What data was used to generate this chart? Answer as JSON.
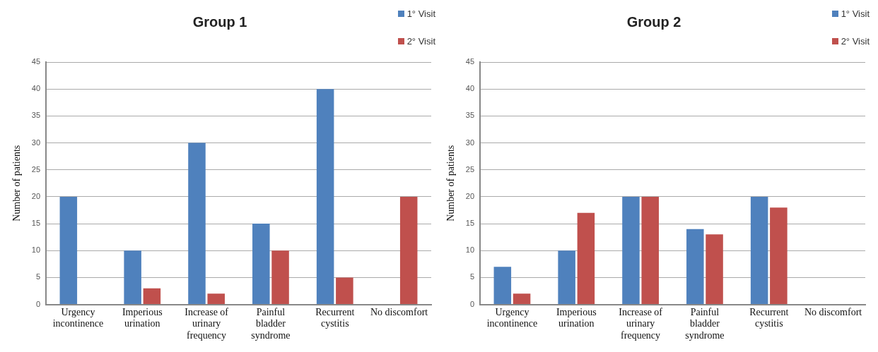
{
  "chart_data": [
    {
      "type": "bar",
      "title": "Group 1",
      "ylabel": "Number of patients",
      "categories": [
        "Urgency incontinence",
        "Imperious urination",
        "Increase of urinary frequency",
        "Painful bladder syndrome",
        "Recurrent cystitis",
        "No discomfort"
      ],
      "series": [
        {
          "name": "1° Visit",
          "color": "#4f81bd",
          "values": [
            20,
            10,
            30,
            15,
            40,
            0
          ]
        },
        {
          "name": "2° Visit",
          "color": "#c0504d",
          "values": [
            0,
            3,
            2,
            10,
            5,
            20
          ]
        }
      ],
      "ylim": [
        0,
        45
      ],
      "yticks": [
        0,
        5,
        10,
        15,
        20,
        25,
        30,
        35,
        40,
        45
      ],
      "grid": "y",
      "legend": "top right"
    },
    {
      "type": "bar",
      "title": "Group 2",
      "ylabel": "Number of patients",
      "categories": [
        "Urgency incontinence",
        "Imperious urination",
        "Increase of urinary frequency",
        "Painful bladder syndrome",
        "Recurrent cystitis",
        "No discomfort"
      ],
      "series": [
        {
          "name": "1° Visit",
          "color": "#4f81bd",
          "values": [
            7,
            10,
            20,
            14,
            20,
            0
          ]
        },
        {
          "name": "2° Visit",
          "color": "#c0504d",
          "values": [
            2,
            17,
            20,
            13,
            18,
            0
          ]
        }
      ],
      "ylim": [
        0,
        45
      ],
      "yticks": [
        0,
        5,
        10,
        15,
        20,
        25,
        30,
        35,
        40,
        45
      ],
      "grid": "y",
      "legend": "top right"
    }
  ]
}
